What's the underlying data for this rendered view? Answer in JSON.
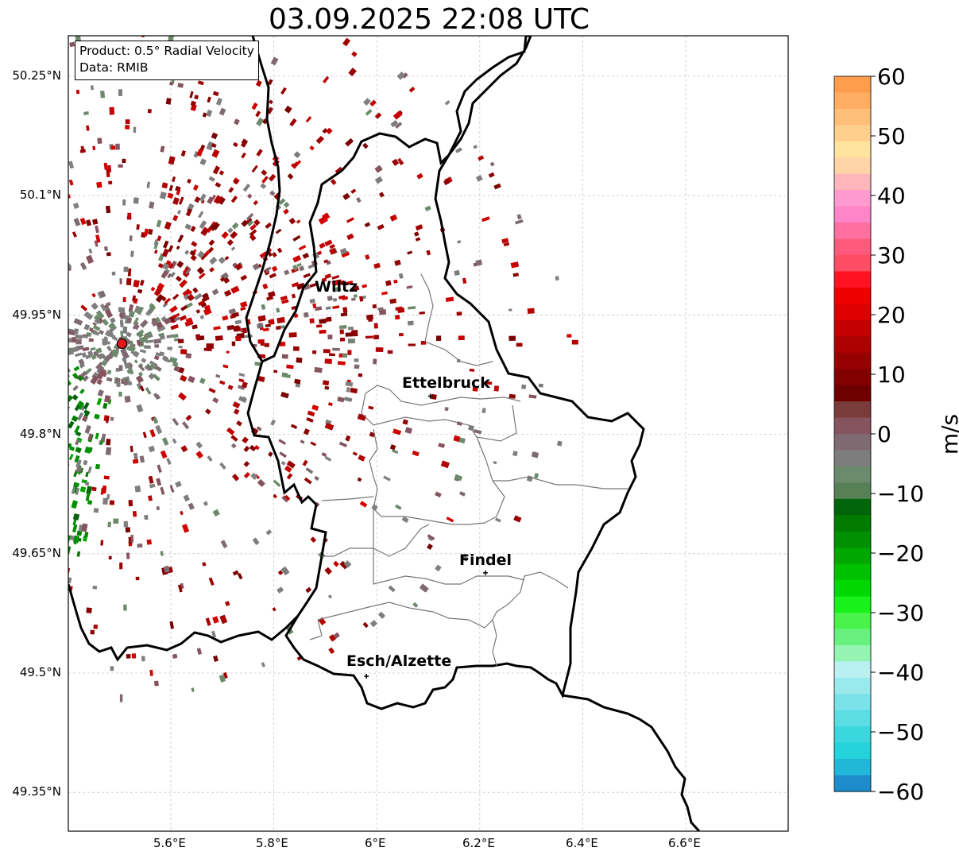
{
  "title": "03.09.2025 22:08 UTC",
  "info_box": {
    "product": "Product: 0.5° Radial Velocity",
    "data": "Data: RMIB"
  },
  "axes": {
    "lat_labels": [
      "50.25°N",
      "50.1°N",
      "49.95°N",
      "49.8°N",
      "49.65°N",
      "49.5°N",
      "49.35°N"
    ],
    "lon_labels": [
      "5.6°E",
      "5.8°E",
      "6°E",
      "6.2°E",
      "6.4°E",
      "6.6°E"
    ],
    "lon_range": [
      5.4,
      6.8
    ],
    "lat_range": [
      49.3,
      50.3
    ],
    "grid": true
  },
  "cities": [
    {
      "name": "Wiltz",
      "lon": 5.93,
      "lat": 49.966
    },
    {
      "name": "Ettelbruck",
      "lon": 6.104,
      "lat": 49.848
    },
    {
      "name": "Findel",
      "lon": 6.211,
      "lat": 49.626
    },
    {
      "name": "Esch/Alzette",
      "lon": 5.98,
      "lat": 49.496
    }
  ],
  "radar_site": {
    "lon": 5.505,
    "lat": 49.914,
    "color": "#e8161b"
  },
  "colorbar": {
    "label": "m/s",
    "ticks": [
      "60",
      "50",
      "40",
      "30",
      "20",
      "10",
      "0",
      "−10",
      "−20",
      "−30",
      "−40",
      "−50",
      "−60"
    ],
    "range": [
      -60,
      60
    ],
    "colors": [
      "#ff9d4d",
      "#ffad63",
      "#ffbf79",
      "#ffd08d",
      "#ffe39e",
      "#ffd4a6",
      "#ffb6bb",
      "#ff9ad0",
      "#ff85c8",
      "#ff6f9f",
      "#ff5a7c",
      "#ff4d65",
      "#ff1221",
      "#ee0000",
      "#dd0000",
      "#c40000",
      "#ad0000",
      "#960000",
      "#820000",
      "#6e0000",
      "#7a3b3b",
      "#85545e",
      "#7f6a72",
      "#7d7d7d",
      "#6c8a6c",
      "#578057",
      "#00640a",
      "#007b00",
      "#008f00",
      "#00a700",
      "#00c100",
      "#00d800",
      "#19f21a",
      "#4af34a",
      "#67f07e",
      "#95f4b2",
      "#baf0f0",
      "#9aeaed",
      "#7be2ea",
      "#5bdde3",
      "#3bd7de",
      "#23d2da",
      "#21b7d6",
      "#1e8ccb"
    ]
  }
}
